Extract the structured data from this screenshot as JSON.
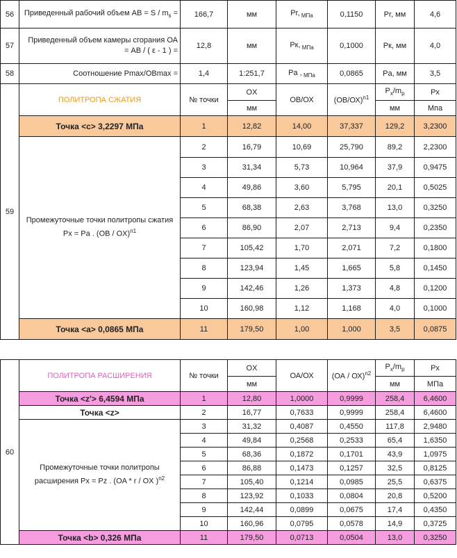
{
  "rows": [
    {
      "num": "56",
      "desc": "Приведенный рабочий объем  AB = S / m",
      "desc_sub": "s",
      "desc_tail": " =",
      "val": "166,7",
      "unit": "мм",
      "p_label": "Pr,",
      "p_unit": " МПа",
      "coef": "0,1150",
      "p_mm": "Pr, мм",
      "res": "4,6"
    },
    {
      "num": "57",
      "desc": "Приведенный объем камеры сгорания ОА = АВ / ( ε - 1 ) =",
      "val": "12,8",
      "unit": "мм",
      "p_label": "Pк,",
      "p_unit": " МПа",
      "coef": "0,1000",
      "p_mm": "Pк, мм",
      "res": "4,0"
    },
    {
      "num": "58",
      "desc": "Соотношение Pmax/OBmax =",
      "val": "1,4",
      "unit": "1:251,7",
      "p_label": "Pa ,",
      "p_unit": " МПа",
      "coef": "0,0865",
      "p_mm": "Pa, мм",
      "res": "3,5"
    }
  ],
  "compression": {
    "num": "59",
    "title": "ПОЛИТРОПА СЖАТИЯ",
    "headers": {
      "point": "№ точки",
      "ox": "OX",
      "ox_unit": "мм",
      "obox": "ОВ/ОХ",
      "pow": "(ОВ/ОХ)",
      "pow_sup": "n1",
      "px_mm": "P",
      "px_mm_sub": "x",
      "px_mm_tail": "/m",
      "px_mm_sub2": "p",
      "px_mm_unit": "мм",
      "px": "Px",
      "px_unit": "Мпа"
    },
    "point_c": {
      "label": "Точка <c> 3,2297 МПа",
      "n": "1",
      "ox": "12,82",
      "r": "14,00",
      "p": "37,337",
      "mm": "129,2",
      "px": "3,2300"
    },
    "mid_label_1": "Промежуточные точки политропы сжатия",
    "mid_label_2": "Px = Pa . (OB / OX)",
    "mid_label_sup": "n1",
    "points": [
      {
        "n": "2",
        "ox": "16,79",
        "r": "10,69",
        "p": "25,790",
        "mm": "89,2",
        "px": "2,2300"
      },
      {
        "n": "3",
        "ox": "31,34",
        "r": "5,73",
        "p": "10,964",
        "mm": "37,9",
        "px": "0,9475"
      },
      {
        "n": "4",
        "ox": "49,86",
        "r": "3,60",
        "p": "5,795",
        "mm": "20,1",
        "px": "0,5025"
      },
      {
        "n": "5",
        "ox": "68,38",
        "r": "2,63",
        "p": "3,768",
        "mm": "13,0",
        "px": "0,3250"
      },
      {
        "n": "6",
        "ox": "86,90",
        "r": "2,07",
        "p": "2,713",
        "mm": "9,4",
        "px": "0,2350"
      },
      {
        "n": "7",
        "ox": "105,42",
        "r": "1,70",
        "p": "2,071",
        "mm": "7,2",
        "px": "0,1800"
      },
      {
        "n": "8",
        "ox": "123,94",
        "r": "1,45",
        "p": "1,665",
        "mm": "5,8",
        "px": "0,1450"
      },
      {
        "n": "9",
        "ox": "142,46",
        "r": "1,26",
        "p": "1,373",
        "mm": "4,8",
        "px": "0,1200"
      },
      {
        "n": "10",
        "ox": "160,98",
        "r": "1,12",
        "p": "1,168",
        "mm": "4,0",
        "px": "0,1000"
      }
    ],
    "point_a": {
      "label": "Точка <a> 0,0865 МПа",
      "n": "11",
      "ox": "179,50",
      "r": "1,00",
      "p": "1,000",
      "mm": "3,5",
      "px": "0,0875"
    }
  },
  "expansion": {
    "num": "60",
    "title": "ПОЛИТРОПА РАСШИРЕНИЯ",
    "headers": {
      "point": "№ точки",
      "ox": "OX",
      "ox_unit": "мм",
      "oaox": "ОА/ОХ",
      "pow": "(ОА / ОХ)",
      "pow_sup": "n2",
      "px_mm": "P",
      "px_mm_sub": "x",
      "px_mm_tail": "/m",
      "px_mm_sub2": "p",
      "px_mm_unit": "мм",
      "px": "Px",
      "px_unit": "МПа"
    },
    "point_z1": {
      "label": "Точка <z'> 6,4594 МПа",
      "n": "1",
      "ox": "12,80",
      "r": "1,0000",
      "p": "0,9999",
      "mm": "258,4",
      "px": "6,4600"
    },
    "point_z": {
      "label": "Точка <z>",
      "n": "2",
      "ox": "16,77",
      "r": "0,7633",
      "p": "0,9999",
      "mm": "258,4",
      "px": "6,4600"
    },
    "mid_label_1": "Промежуточные точки политропы",
    "mid_label_2": "расширения Px = Pz . (OA * r / OX )",
    "mid_label_sup": "n2",
    "points": [
      {
        "n": "3",
        "ox": "31,32",
        "r": "0,4087",
        "p": "0,4550",
        "mm": "117,8",
        "px": "2,9480"
      },
      {
        "n": "4",
        "ox": "49,84",
        "r": "0,2568",
        "p": "0,2533",
        "mm": "65,4",
        "px": "1,6350"
      },
      {
        "n": "5",
        "ox": "68,36",
        "r": "0,1872",
        "p": "0,1701",
        "mm": "43,9",
        "px": "1,0975"
      },
      {
        "n": "6",
        "ox": "86,88",
        "r": "0,1473",
        "p": "0,1257",
        "mm": "32,5",
        "px": "0,8125"
      },
      {
        "n": "7",
        "ox": "105,40",
        "r": "0,1214",
        "p": "0,0985",
        "mm": "25,5",
        "px": "0,6375"
      },
      {
        "n": "8",
        "ox": "123,92",
        "r": "0,1033",
        "p": "0,0804",
        "mm": "20,8",
        "px": "0,5200"
      },
      {
        "n": "9",
        "ox": "142,44",
        "r": "0,0899",
        "p": "0,0675",
        "mm": "17,4",
        "px": "0,4350"
      },
      {
        "n": "10",
        "ox": "160,96",
        "r": "0,0795",
        "p": "0,0578",
        "mm": "14,9",
        "px": "0,3725"
      }
    ],
    "point_b": {
      "label": "Точка <b> 0,326 МПа",
      "n": "11",
      "ox": "179,50",
      "r": "0,0713",
      "p": "0,0504",
      "mm": "13,0",
      "px": "0,3250"
    }
  },
  "colors": {
    "orange_fill": "#f9c89b",
    "pink_fill": "#f59ddf",
    "orange_title": "#e69a1c",
    "pink_title": "#e45cc5"
  }
}
